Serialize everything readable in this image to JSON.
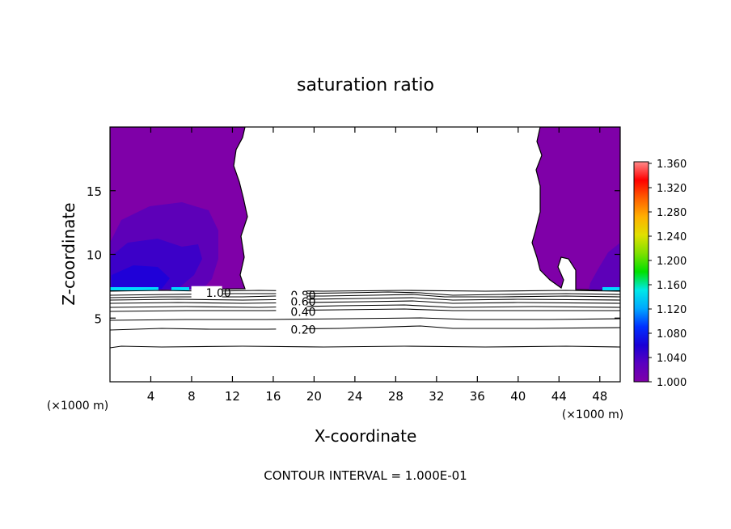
{
  "chart_data": {
    "type": "contour",
    "title": "saturation ratio",
    "xlabel": "X-coordinate",
    "ylabel": "Z-coordinate",
    "x_unit": "(×1000 m)",
    "z_unit": "(×1000 m)",
    "xlim": [
      0,
      50
    ],
    "ylim": [
      0,
      20
    ],
    "x_ticks": [
      4,
      8,
      12,
      16,
      20,
      24,
      28,
      32,
      36,
      40,
      44,
      48
    ],
    "y_ticks": [
      5,
      10,
      15
    ],
    "footer": "CONTOUR INTERVAL = 1.000E-01",
    "contour_labels": [
      {
        "text": "1.00",
        "x": 9.4,
        "z": 7.0
      },
      {
        "text": "0.80",
        "x": 17.7,
        "z": 6.8
      },
      {
        "text": "0.60",
        "x": 17.7,
        "z": 6.3
      },
      {
        "text": "0.40",
        "x": 17.7,
        "z": 5.5
      },
      {
        "text": "0.20",
        "x": 17.7,
        "z": 4.1
      }
    ],
    "colorbar": {
      "min": 1.0,
      "max": 1.36,
      "labels": [
        "1.360",
        "1.320",
        "1.280",
        "1.240",
        "1.200",
        "1.160",
        "1.120",
        "1.080",
        "1.040",
        "1.000"
      ],
      "colors": [
        "#7f00a8",
        "#5a00c0",
        "#1a00d6",
        "#0030ff",
        "#00a8ff",
        "#00e8e8",
        "#00e000",
        "#7fe000",
        "#e0e000",
        "#ffb000",
        "#ff6000",
        "#ff0000",
        "#ff8a8a"
      ]
    }
  }
}
